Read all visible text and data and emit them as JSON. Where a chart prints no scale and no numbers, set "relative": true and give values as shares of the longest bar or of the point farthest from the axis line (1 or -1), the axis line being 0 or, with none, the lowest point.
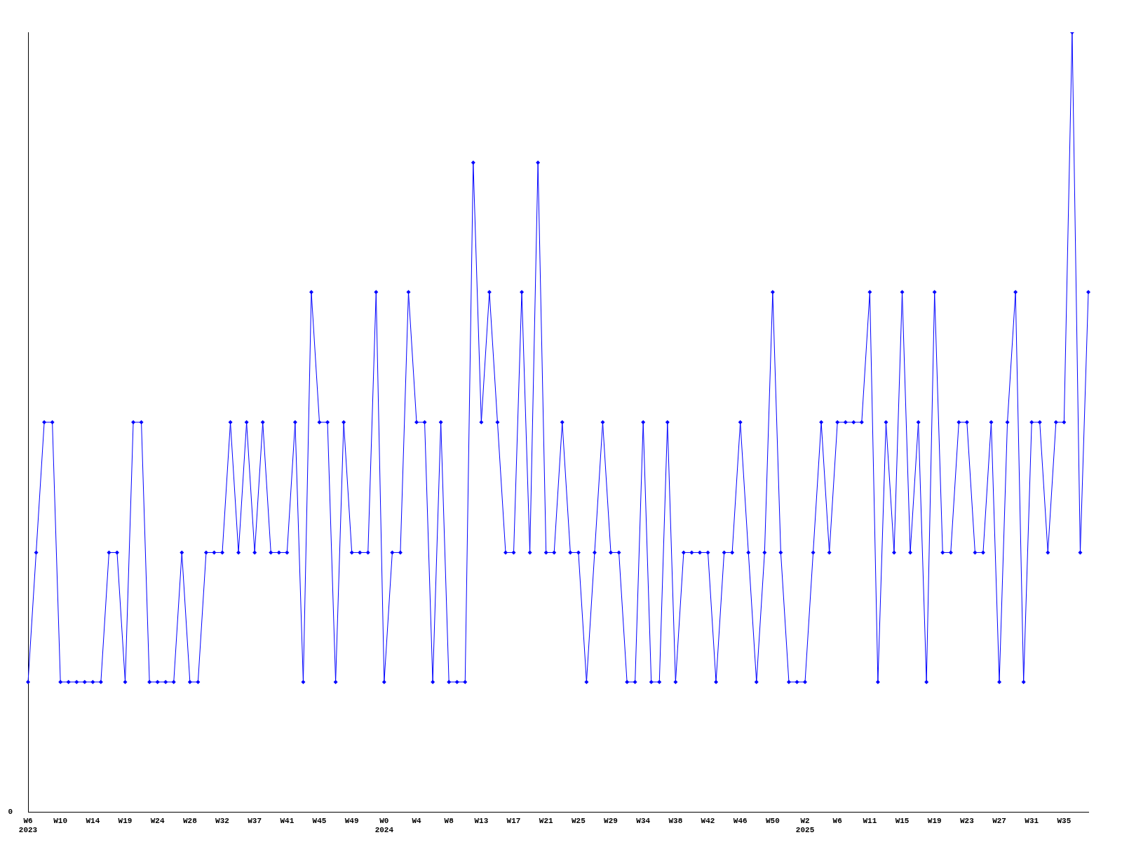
{
  "chart_data": {
    "type": "line",
    "relative": true,
    "grid": false,
    "legend": false,
    "marker": "diamond",
    "line_style": "solid",
    "annotations": [
      "0"
    ],
    "categories": [
      "W6\n2023",
      null,
      null,
      null,
      "W10",
      null,
      null,
      null,
      "W14",
      null,
      null,
      null,
      "W19",
      null,
      null,
      null,
      "W24",
      null,
      null,
      null,
      "W28",
      null,
      null,
      null,
      "W32",
      null,
      null,
      null,
      "W37",
      null,
      null,
      null,
      "W41",
      null,
      null,
      null,
      "W45",
      null,
      null,
      null,
      "W49",
      null,
      null,
      null,
      "W0\n2024",
      null,
      null,
      null,
      "W4",
      null,
      null,
      null,
      "W8",
      null,
      null,
      null,
      "W13",
      null,
      null,
      null,
      "W17",
      null,
      null,
      null,
      "W21",
      null,
      null,
      null,
      "W25",
      null,
      null,
      null,
      "W29",
      null,
      null,
      null,
      "W34",
      null,
      null,
      null,
      "W38",
      null,
      null,
      null,
      "W42",
      null,
      null,
      null,
      "W46",
      null,
      null,
      null,
      "W50",
      null,
      null,
      null,
      "W2\n2025",
      null,
      null,
      null,
      "W6",
      null,
      null,
      null,
      "W11",
      null,
      null,
      null,
      "W15",
      null,
      null,
      null,
      "W19",
      null,
      null,
      null,
      "W23",
      null,
      null,
      null,
      "W27",
      null,
      null,
      null,
      "W31",
      null,
      null,
      null,
      "W35",
      null,
      null,
      null
    ],
    "series": [
      {
        "color": "#0000ff",
        "values": [
          0.167,
          0.333,
          0.5,
          0.5,
          0.167,
          0.167,
          0.167,
          0.167,
          0.167,
          0.167,
          0.333,
          0.333,
          0.167,
          0.5,
          0.5,
          0.167,
          0.167,
          0.167,
          0.167,
          0.333,
          0.167,
          0.167,
          0.333,
          0.333,
          0.333,
          0.5,
          0.333,
          0.5,
          0.333,
          0.5,
          0.333,
          0.333,
          0.333,
          0.5,
          0.167,
          0.667,
          0.5,
          0.5,
          0.167,
          0.5,
          0.333,
          0.333,
          0.333,
          0.667,
          0.167,
          0.333,
          0.333,
          0.667,
          0.5,
          0.5,
          0.167,
          0.5,
          0.167,
          0.167,
          0.167,
          0.833,
          0.5,
          0.667,
          0.5,
          0.333,
          0.333,
          0.667,
          0.333,
          0.833,
          0.333,
          0.333,
          0.5,
          0.333,
          0.333,
          0.167,
          0.333,
          0.5,
          0.333,
          0.333,
          0.167,
          0.167,
          0.5,
          0.167,
          0.167,
          0.5,
          0.167,
          0.333,
          0.333,
          0.333,
          0.333,
          0.167,
          0.333,
          0.333,
          0.5,
          0.333,
          0.167,
          0.333,
          0.667,
          0.333,
          0.167,
          0.167,
          0.167,
          0.333,
          0.5,
          0.333,
          0.5,
          0.5,
          0.5,
          0.5,
          0.667,
          0.167,
          0.5,
          0.333,
          0.667,
          0.333,
          0.5,
          0.167,
          0.667,
          0.333,
          0.333,
          0.5,
          0.5,
          0.333,
          0.333,
          0.5,
          0.167,
          0.5,
          0.667,
          0.167,
          0.5,
          0.5,
          0.333,
          0.5,
          0.5,
          1,
          0.333,
          0.667
        ]
      }
    ]
  }
}
